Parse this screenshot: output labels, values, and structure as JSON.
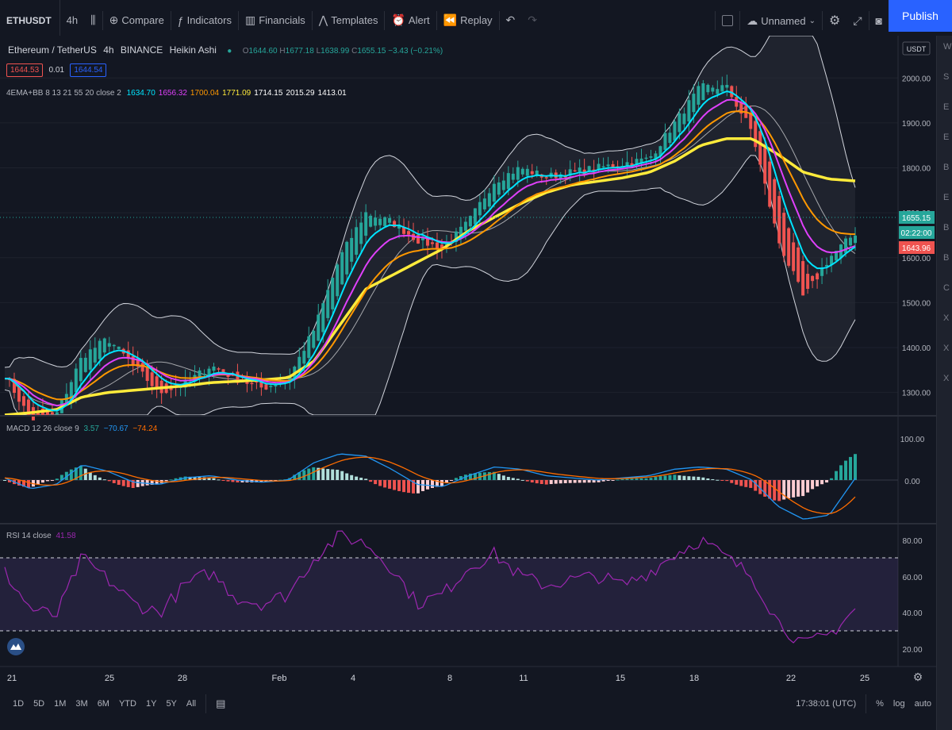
{
  "toolbar": {
    "symbol": "ETHUSDT",
    "interval": "4h",
    "compare": "Compare",
    "indicators": "Indicators",
    "financials": "Financials",
    "templates": "Templates",
    "alert": "Alert",
    "replay": "Replay",
    "layout_name": "Unnamed",
    "publish": "Publish"
  },
  "legend": {
    "title": "Ethereum / TetherUS",
    "interval": "4h",
    "exchange": "BINANCE",
    "chart_type": "Heikin Ashi",
    "o_label": "O",
    "o": "1644.60",
    "h_label": "H",
    "h": "1677.18",
    "l_label": "L",
    "l": "1638.99",
    "c_label": "C",
    "c": "1655.15",
    "change": "−3.43 (−0.21%)",
    "bid": "1644.53",
    "spread": "0.01",
    "ask": "1644.54"
  },
  "ema_bb": {
    "label": "4EMA+BB 8 13 21 55 20 close 2",
    "values": [
      "1634.70",
      "1656.32",
      "1700.04",
      "1771.09",
      "1714.15",
      "2015.29",
      "1413.01"
    ],
    "colors": [
      "#00e5ff",
      "#e040fb",
      "#ff9800",
      "#ffeb3b",
      "#ffffff",
      "#ffffff",
      "#ffffff"
    ]
  },
  "macd": {
    "label": "MACD 12 26 close 9",
    "v1": "3.57",
    "v2": "−70.67",
    "v3": "−74.24"
  },
  "rsi": {
    "label": "RSI 14 close",
    "value": "41.58"
  },
  "price_axis": {
    "currency": "USDT",
    "ticks": [
      "2000.00",
      "1900.00",
      "1800.00",
      "1700.00",
      "1600.00",
      "1500.00",
      "1400.00",
      "1300.00"
    ],
    "last_price": "1655.15",
    "countdown": "02:22:00",
    "ema_price": "1643.96"
  },
  "macd_axis": {
    "ticks": [
      "100.00",
      "0.00"
    ]
  },
  "rsi_axis": {
    "ticks": [
      "80.00",
      "60.00",
      "40.00",
      "20.00"
    ]
  },
  "time_axis": {
    "ticks": [
      "21",
      "25",
      "28",
      "Feb",
      "4",
      "8",
      "11",
      "15",
      "18",
      "22",
      "25"
    ]
  },
  "bottom": {
    "ranges": [
      "1D",
      "5D",
      "1M",
      "3M",
      "6M",
      "YTD",
      "1Y",
      "5Y",
      "All"
    ],
    "clock": "17:38:01 (UTC)",
    "percent": "%",
    "log": "log",
    "auto": "auto"
  },
  "right_strip": [
    "W",
    "S",
    "E",
    "E",
    "B",
    "E",
    "B",
    "B",
    "C",
    "X",
    "X",
    "X"
  ],
  "colors": {
    "up": "#26a69a",
    "down": "#ef5350",
    "ema8": "#00e5ff",
    "ema13": "#e040fb",
    "ema21": "#ff9800",
    "ema55": "#ffeb3b",
    "bb": "#d1d4dc",
    "macd": "#2196f3",
    "signal": "#ff6d00",
    "rsi": "#9c27b0"
  },
  "chart_data": {
    "type": "line",
    "x_labels": [
      "21",
      "25",
      "28",
      "Feb",
      "4",
      "8",
      "11",
      "15",
      "18",
      "22",
      "25"
    ],
    "ylim": [
      1250,
      2080
    ],
    "close": [
      1340,
      1240,
      1250,
      1380,
      1420,
      1360,
      1300,
      1320,
      1360,
      1330,
      1310,
      1330,
      1440,
      1600,
      1700,
      1680,
      1640,
      1620,
      1680,
      1770,
      1800,
      1780,
      1790,
      1800,
      1810,
      1820,
      1900,
      1980,
      1980,
      1880,
      1640,
      1510,
      1600,
      1655
    ],
    "ema55": [
      1250,
      1255,
      1262,
      1290,
      1300,
      1305,
      1310,
      1315,
      1322,
      1325,
      1328,
      1333,
      1370,
      1450,
      1530,
      1560,
      1590,
      1620,
      1660,
      1690,
      1720,
      1745,
      1762,
      1770,
      1778,
      1790,
      1815,
      1850,
      1865,
      1865,
      1830,
      1790,
      1775,
      1771
    ],
    "macd_line": [
      5,
      -20,
      -10,
      35,
      20,
      -5,
      -10,
      5,
      10,
      0,
      -5,
      0,
      40,
      60,
      55,
      25,
      -10,
      -15,
      10,
      30,
      25,
      10,
      5,
      0,
      5,
      10,
      25,
      30,
      25,
      0,
      -60,
      -90,
      -80,
      4
    ],
    "rsi": [
      62,
      42,
      38,
      70,
      58,
      45,
      40,
      55,
      62,
      48,
      45,
      50,
      70,
      82,
      78,
      65,
      45,
      50,
      65,
      72,
      60,
      55,
      58,
      60,
      55,
      62,
      72,
      80,
      70,
      60,
      35,
      22,
      28,
      42
    ]
  }
}
